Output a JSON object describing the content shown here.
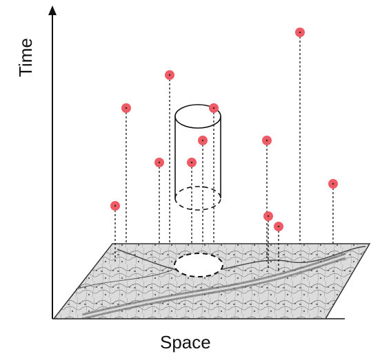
{
  "axes": {
    "x_label": "Space",
    "y_label": "Time"
  },
  "colors": {
    "event": "#ef5b65",
    "stroke": "#111111",
    "map_background": "#d9d9d9"
  },
  "events": [
    {
      "id": "e1",
      "time": 0.87,
      "space_col": 0.72
    },
    {
      "id": "e2",
      "time": 0.7,
      "space_col": 0.3
    },
    {
      "id": "e3",
      "time": 0.57,
      "space_col": 0.17
    },
    {
      "id": "e4",
      "time": 0.53,
      "space_col": 0.41
    },
    {
      "id": "e5",
      "time": 0.41,
      "space_col": 0.38
    },
    {
      "id": "e6",
      "time": 0.35,
      "space_col": 0.26
    },
    {
      "id": "e7",
      "time": 0.35,
      "space_col": 0.34
    },
    {
      "id": "e8",
      "time": 0.41,
      "space_col": 0.6
    },
    {
      "id": "e9",
      "time": 0.24,
      "space_col": 0.82
    },
    {
      "id": "e10",
      "time": 0.17,
      "space_col": 0.11
    },
    {
      "id": "e11",
      "time": 0.1,
      "space_col": 0.6
    },
    {
      "id": "e12",
      "time": 0.07,
      "space_col": 0.62
    }
  ]
}
